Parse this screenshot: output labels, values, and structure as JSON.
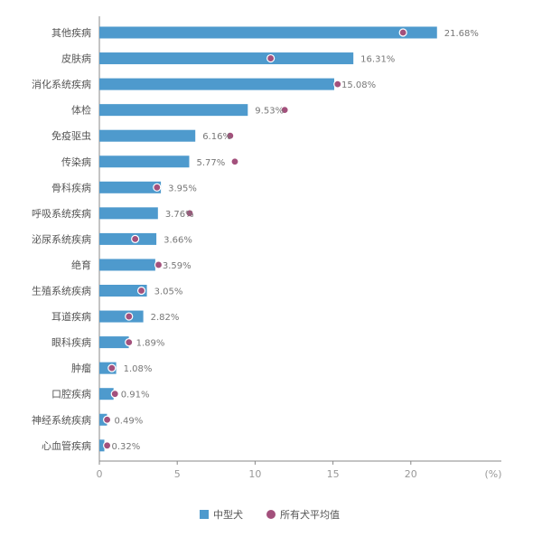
{
  "chart_data": {
    "type": "bar",
    "orientation": "horizontal",
    "categories": [
      "其他疾病",
      "皮肤病",
      "消化系统疾病",
      "体检",
      "免疫驱虫",
      "传染病",
      "骨科疾病",
      "呼吸系统疾病",
      "泌尿系统疾病",
      "绝育",
      "生殖系统疾病",
      "耳道疾病",
      "眼科疾病",
      "肿瘤",
      "口腔疾病",
      "神经系统疾病",
      "心血管疾病"
    ],
    "series": [
      {
        "name": "中型犬",
        "type": "bar",
        "color": "#4E9ACD",
        "values": [
          21.68,
          16.31,
          15.08,
          9.53,
          6.16,
          5.77,
          3.95,
          3.76,
          3.66,
          3.59,
          3.05,
          2.82,
          1.89,
          1.08,
          0.91,
          0.49,
          0.32
        ],
        "labels": [
          "21.68%",
          "16.31%",
          "15.08%",
          "9.53%",
          "6.16%",
          "5.77%",
          "3.95%",
          "3.76%",
          "3.66%",
          "3.59%",
          "3.05%",
          "2.82%",
          "1.89%",
          "1.08%",
          "0.91%",
          "0.49%",
          "0.32%"
        ]
      },
      {
        "name": "所有犬平均值",
        "type": "scatter",
        "color": "#A3507C",
        "values": [
          19.5,
          11.0,
          15.3,
          11.9,
          8.4,
          8.7,
          3.7,
          5.8,
          2.3,
          3.8,
          2.7,
          1.9,
          1.9,
          0.8,
          1.0,
          0.5,
          0.5
        ]
      }
    ],
    "xlim": [
      0,
      25
    ],
    "xticks": [
      0,
      5,
      10,
      15,
      20
    ],
    "x_unit": "(%)",
    "legend_position": "bottom-center",
    "grid": false
  }
}
